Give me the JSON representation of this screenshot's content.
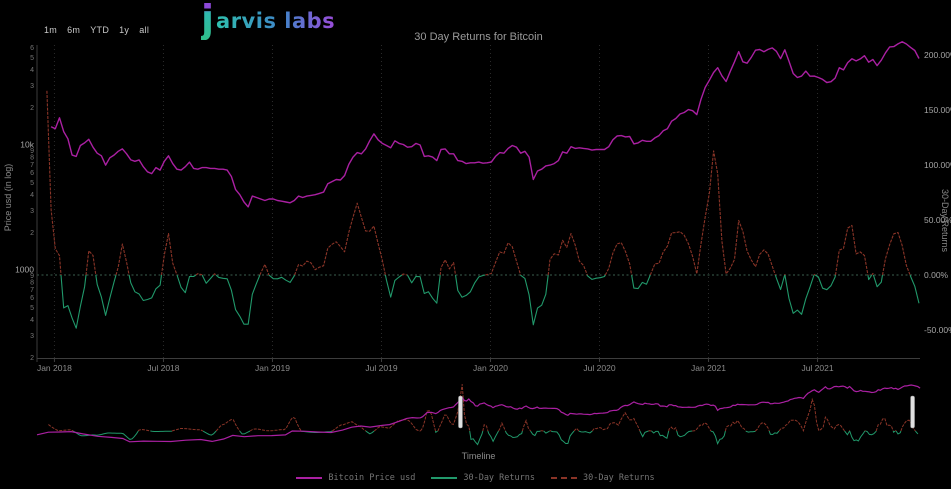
{
  "logo": {
    "j": "j",
    "rest": "arvis labs"
  },
  "toolbar": {
    "ranges": [
      "1m",
      "6m",
      "YTD",
      "1y",
      "all"
    ]
  },
  "colors": {
    "background": "#000000",
    "price_line": "#aa20a2",
    "returns_positive": "#8a3427",
    "returns_negative": "#21996b",
    "gridline": "#2b2b2b",
    "zero_line": "#3d5f50",
    "axis_line": "#3d3d3d",
    "tick_text": "#8a8a8a",
    "tick_text_minor": "#767676",
    "title_text": "#9a9a9a",
    "legend_text": "#757575",
    "handle": "#e0e0e0"
  },
  "legend": [
    {
      "label": "Bitcoin Price usd",
      "color": "#aa20a2",
      "dash": false
    },
    {
      "label": "30-Day Returns",
      "color": "#21996b",
      "dash": false
    },
    {
      "label": "30-Day Returns",
      "color": "#8a3427",
      "dash": true
    }
  ],
  "chart_data": {
    "type": "line",
    "title": "30 Day Returns for Bitcoin",
    "left_axis": {
      "label": "Price usd (in log)",
      "scale": "log",
      "ticks": [
        {
          "v": 60000,
          "l": "6"
        },
        {
          "v": 50000,
          "l": "5"
        },
        {
          "v": 40000,
          "l": "4"
        },
        {
          "v": 30000,
          "l": "3"
        },
        {
          "v": 20000,
          "l": "2"
        },
        {
          "v": 10000,
          "l": "10k"
        },
        {
          "v": 9000,
          "l": "9"
        },
        {
          "v": 8000,
          "l": "8"
        },
        {
          "v": 7000,
          "l": "7"
        },
        {
          "v": 6000,
          "l": "6"
        },
        {
          "v": 5000,
          "l": "5"
        },
        {
          "v": 4000,
          "l": "4"
        },
        {
          "v": 3000,
          "l": "3"
        },
        {
          "v": 2000,
          "l": "2"
        },
        {
          "v": 1000,
          "l": "1000"
        },
        {
          "v": 900,
          "l": "9"
        },
        {
          "v": 800,
          "l": "8"
        },
        {
          "v": 700,
          "l": "7"
        },
        {
          "v": 600,
          "l": "6"
        },
        {
          "v": 500,
          "l": "5"
        },
        {
          "v": 400,
          "l": "4"
        },
        {
          "v": 300,
          "l": "3"
        },
        {
          "v": 200,
          "l": "2"
        }
      ]
    },
    "right_axis": {
      "label": "30-Day Returns",
      "ticks": [
        {
          "v": 2.0,
          "l": "200.00%"
        },
        {
          "v": 1.5,
          "l": "150.00%"
        },
        {
          "v": 1.0,
          "l": "100.00%"
        },
        {
          "v": 0.5,
          "l": "50.00%"
        },
        {
          "v": 0.0,
          "l": "0.00%"
        },
        {
          "v": -0.5,
          "l": "-50.00%"
        }
      ]
    },
    "x_axis": {
      "domain": [
        2017.92,
        2021.97
      ],
      "ticks": [
        {
          "t": 2018.0,
          "l": "Jan 2018"
        },
        {
          "t": 2018.5,
          "l": "Jul 2018"
        },
        {
          "t": 2019.0,
          "l": "Jan 2019"
        },
        {
          "t": 2019.5,
          "l": "Jul 2019"
        },
        {
          "t": 2020.0,
          "l": "Jan 2020"
        },
        {
          "t": 2020.5,
          "l": "Jul 2020"
        },
        {
          "t": 2021.0,
          "l": "Jan 2021"
        },
        {
          "t": 2021.5,
          "l": "Jul 2021"
        }
      ]
    },
    "series": [
      {
        "name": "Bitcoin Price usd",
        "color": "#aa20a2",
        "axis": "left"
      },
      {
        "name": "30-Day Returns",
        "color": "#21996b",
        "axis": "right",
        "sign": "negative"
      },
      {
        "name": "30-Day Returns",
        "color": "#8a3427",
        "axis": "right",
        "sign": "positive"
      }
    ],
    "returns_lag_years": 0.0822,
    "price_draw_from": 2017.975,
    "returns_draw_from": 2017.955,
    "price_weekly": {
      "start": 2017.6,
      "step": 0.019231,
      "values": [
        2500,
        2800,
        3400,
        4200,
        4300,
        4350,
        4100,
        3800,
        4300,
        5200,
        5700,
        6100,
        6500,
        6900,
        7000,
        7400,
        9300,
        11500,
        15000,
        19500,
        14000,
        13500,
        16500,
        12800,
        11200,
        8300,
        8100,
        9900,
        10400,
        11100,
        9600,
        8600,
        8200,
        6900,
        7900,
        8300,
        8900,
        9300,
        8500,
        7600,
        7400,
        7600,
        6700,
        6100,
        5900,
        6600,
        6300,
        7400,
        8200,
        7100,
        6400,
        6300,
        6700,
        7300,
        6500,
        6400,
        6600,
        6600,
        6500,
        6500,
        6400,
        6400,
        6300,
        5600,
        4400,
        4000,
        3500,
        3200,
        3900,
        3800,
        3700,
        3600,
        3700,
        3700,
        3600,
        3550,
        3500,
        3450,
        3600,
        3900,
        3800,
        3900,
        3950,
        4000,
        4100,
        4200,
        4900,
        5100,
        5300,
        5250,
        5700,
        7000,
        8000,
        8700,
        8500,
        9300,
        10800,
        12300,
        11000,
        10300,
        9900,
        9500,
        10800,
        10300,
        10100,
        9600,
        9700,
        10300,
        10000,
        8100,
        8200,
        8000,
        7500,
        9200,
        9300,
        8500,
        8500,
        7500,
        7400,
        7100,
        7200,
        7200,
        7300,
        7150,
        7200,
        7300,
        8100,
        8700,
        8600,
        9400,
        9900,
        9600,
        8600,
        8900,
        8000,
        5300,
        6200,
        6400,
        6800,
        6900,
        7100,
        7500,
        8800,
        8600,
        9700,
        9400,
        9500,
        9400,
        9300,
        9100,
        9200,
        9200,
        9200,
        9700,
        11000,
        11800,
        11900,
        11600,
        11700,
        10200,
        10400,
        10900,
        10700,
        10700,
        11400,
        11900,
        13000,
        13500,
        15500,
        16300,
        17700,
        18200,
        19200,
        18800,
        17500,
        23200,
        28900,
        33000,
        38000,
        41500,
        35800,
        32200,
        38900,
        46300,
        55900,
        46300,
        45100,
        50300,
        57300,
        58100,
        55800,
        58200,
        59800,
        56200,
        49000,
        57800,
        46700,
        37300,
        34700,
        35600,
        39000,
        35500,
        35600,
        34700,
        33500,
        31600,
        32100,
        34300,
        41500,
        39900,
        45600,
        48900,
        47100,
        48800,
        51800,
        46000,
        48300,
        43200,
        47700,
        54700,
        60900,
        61300,
        64400,
        66900,
        64300,
        60400,
        57000,
        49200
      ]
    },
    "price_history": [
      [
        2014.25,
        455
      ],
      [
        2014.35,
        590
      ],
      [
        2014.45,
        600
      ],
      [
        2014.55,
        630
      ],
      [
        2014.65,
        500
      ],
      [
        2014.78,
        390
      ],
      [
        2014.9,
        350
      ],
      [
        2015.0,
        315
      ],
      [
        2015.06,
        225
      ],
      [
        2015.18,
        242
      ],
      [
        2015.3,
        236
      ],
      [
        2015.42,
        232
      ],
      [
        2015.55,
        265
      ],
      [
        2015.68,
        285
      ],
      [
        2015.78,
        235
      ],
      [
        2015.88,
        300
      ],
      [
        2015.96,
        430
      ],
      [
        2016.06,
        375
      ],
      [
        2016.18,
        415
      ],
      [
        2016.3,
        420
      ],
      [
        2016.42,
        450
      ],
      [
        2016.48,
        665
      ],
      [
        2016.58,
        650
      ],
      [
        2016.7,
        600
      ],
      [
        2016.82,
        575
      ],
      [
        2016.92,
        730
      ],
      [
        2017.0,
        970
      ],
      [
        2017.08,
        1100
      ],
      [
        2017.16,
        980
      ],
      [
        2017.25,
        1150
      ],
      [
        2017.33,
        1260
      ],
      [
        2017.42,
        1790
      ],
      [
        2017.48,
        2350
      ],
      [
        2017.53,
        2550
      ],
      [
        2017.57,
        2450
      ]
    ],
    "timeline": {
      "label": "Timeline",
      "domain": [
        2014.25,
        2021.965
      ],
      "handles": [
        2017.95,
        2021.9
      ]
    }
  }
}
